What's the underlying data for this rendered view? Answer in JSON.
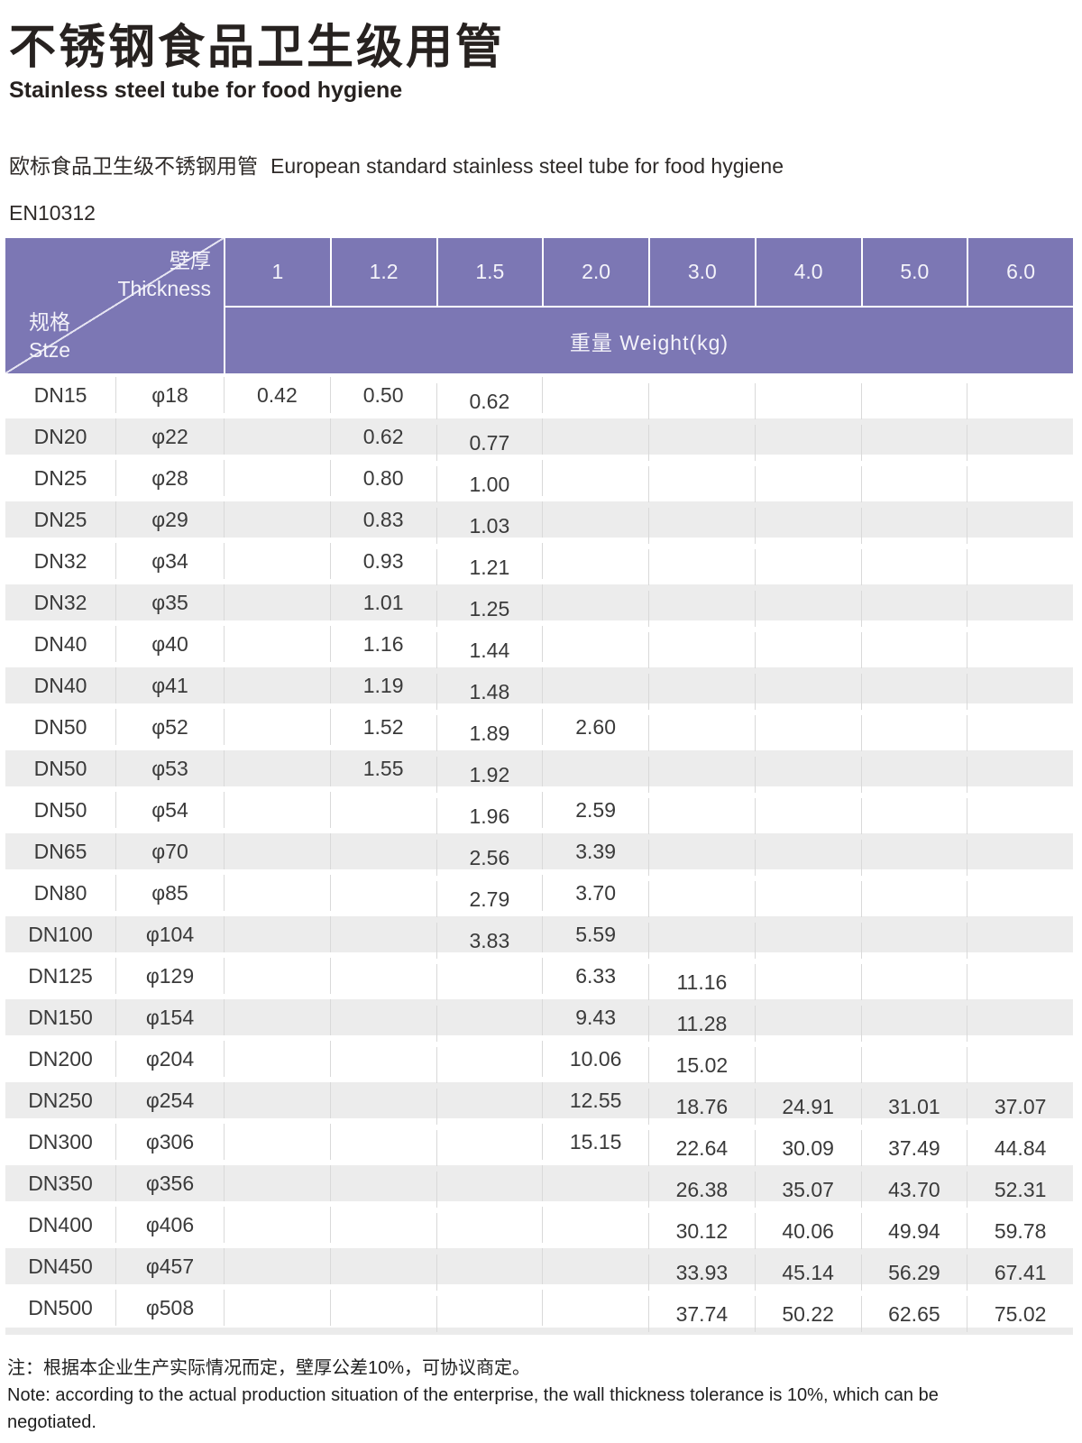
{
  "header": {
    "title_zh": "不锈钢食品卫生级用管",
    "title_en": "Stainless steel tube for food hygiene",
    "subtitle_zh": "欧标食品卫生级不锈钢用管",
    "subtitle_en": "European standard stainless steel tube for food hygiene",
    "standard": "EN10312"
  },
  "table": {
    "corner": {
      "thickness_zh": "壁厚",
      "thickness_en": "Thickness",
      "size_zh": "规格",
      "size_en": "Stze"
    },
    "thickness_columns": [
      "1",
      "1.2",
      "1.5",
      "2.0",
      "3.0",
      "4.0",
      "5.0",
      "6.0"
    ],
    "weight_header": "重量 Weight(kg)",
    "low_offset_columns": [
      2,
      4,
      5,
      6,
      7
    ],
    "rows": [
      {
        "dn": "DN15",
        "dia": "φ18",
        "weights": [
          "0.42",
          "0.50",
          "0.62",
          "",
          "",
          "",
          "",
          ""
        ]
      },
      {
        "dn": "DN20",
        "dia": "φ22",
        "weights": [
          "",
          "0.62",
          "0.77",
          "",
          "",
          "",
          "",
          ""
        ]
      },
      {
        "dn": "DN25",
        "dia": "φ28",
        "weights": [
          "",
          "0.80",
          "1.00",
          "",
          "",
          "",
          "",
          ""
        ]
      },
      {
        "dn": "DN25",
        "dia": "φ29",
        "weights": [
          "",
          "0.83",
          "1.03",
          "",
          "",
          "",
          "",
          ""
        ]
      },
      {
        "dn": "DN32",
        "dia": "φ34",
        "weights": [
          "",
          "0.93",
          "1.21",
          "",
          "",
          "",
          "",
          ""
        ]
      },
      {
        "dn": "DN32",
        "dia": "φ35",
        "weights": [
          "",
          "1.01",
          "1.25",
          "",
          "",
          "",
          "",
          ""
        ]
      },
      {
        "dn": "DN40",
        "dia": "φ40",
        "weights": [
          "",
          "1.16",
          "1.44",
          "",
          "",
          "",
          "",
          ""
        ]
      },
      {
        "dn": "DN40",
        "dia": "φ41",
        "weights": [
          "",
          "1.19",
          "1.48",
          "",
          "",
          "",
          "",
          ""
        ]
      },
      {
        "dn": "DN50",
        "dia": "φ52",
        "weights": [
          "",
          "1.52",
          "1.89",
          "2.60",
          "",
          "",
          "",
          ""
        ]
      },
      {
        "dn": "DN50",
        "dia": "φ53",
        "weights": [
          "",
          "1.55",
          "1.92",
          "",
          "",
          "",
          "",
          ""
        ]
      },
      {
        "dn": "DN50",
        "dia": "φ54",
        "weights": [
          "",
          "",
          "1.96",
          "2.59",
          "",
          "",
          "",
          ""
        ]
      },
      {
        "dn": "DN65",
        "dia": "φ70",
        "weights": [
          "",
          "",
          "2.56",
          "3.39",
          "",
          "",
          "",
          ""
        ]
      },
      {
        "dn": "DN80",
        "dia": "φ85",
        "weights": [
          "",
          "",
          "2.79",
          "3.70",
          "",
          "",
          "",
          ""
        ]
      },
      {
        "dn": "DN100",
        "dia": "φ104",
        "weights": [
          "",
          "",
          "3.83",
          "5.59",
          "",
          "",
          "",
          ""
        ]
      },
      {
        "dn": "DN125",
        "dia": "φ129",
        "weights": [
          "",
          "",
          "",
          "6.33",
          "11.16",
          "",
          "",
          ""
        ]
      },
      {
        "dn": "DN150",
        "dia": "φ154",
        "weights": [
          "",
          "",
          "",
          "9.43",
          "11.28",
          "",
          "",
          ""
        ]
      },
      {
        "dn": "DN200",
        "dia": "φ204",
        "weights": [
          "",
          "",
          "",
          "10.06",
          "15.02",
          "",
          "",
          ""
        ]
      },
      {
        "dn": "DN250",
        "dia": "φ254",
        "weights": [
          "",
          "",
          "",
          "12.55",
          "18.76",
          "24.91",
          "31.01",
          "37.07"
        ]
      },
      {
        "dn": "DN300",
        "dia": "φ306",
        "weights": [
          "",
          "",
          "",
          "15.15",
          "22.64",
          "30.09",
          "37.49",
          "44.84"
        ]
      },
      {
        "dn": "DN350",
        "dia": "φ356",
        "weights": [
          "",
          "",
          "",
          "",
          "26.38",
          "35.07",
          "43.70",
          "52.31"
        ]
      },
      {
        "dn": "DN400",
        "dia": "φ406",
        "weights": [
          "",
          "",
          "",
          "",
          "30.12",
          "40.06",
          "49.94",
          "59.78"
        ]
      },
      {
        "dn": "DN450",
        "dia": "φ457",
        "weights": [
          "",
          "",
          "",
          "",
          "33.93",
          "45.14",
          "56.29",
          "67.41"
        ]
      },
      {
        "dn": "DN500",
        "dia": "φ508",
        "weights": [
          "",
          "",
          "",
          "",
          "37.74",
          "50.22",
          "62.65",
          "75.02"
        ]
      }
    ]
  },
  "note": {
    "zh": "注：根据本企业生产实际情况而定，壁厚公差10%，可协议商定。",
    "en": "Note: according to the actual production situation of the enterprise, the wall thickness tolerance is 10%, which can be negotiated."
  },
  "colors": {
    "header_purple": "#7c77b4",
    "row_alt_gray": "#ececec",
    "divider_gray": "#d9d9d9"
  }
}
